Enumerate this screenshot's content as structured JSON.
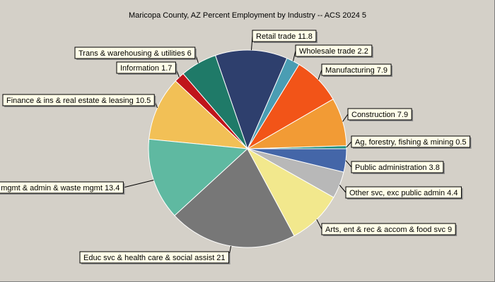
{
  "chart_data": {
    "type": "pie",
    "title": "Maricopa County, AZ Percent Employment by Industry -- ACS 2024 5",
    "legend": "none",
    "slices": [
      {
        "label": "Ag, forestry, fishing & mining",
        "value": 0.5,
        "color": "#1f8f7f"
      },
      {
        "label": "Construction",
        "value": 7.9,
        "color": "#f29b35"
      },
      {
        "label": "Manufacturing",
        "value": 7.9,
        "color": "#f25418"
      },
      {
        "label": "Wholesale trade",
        "value": 2.2,
        "color": "#4a9db3"
      },
      {
        "label": "Retail trade",
        "value": 11.8,
        "color": "#2e3f6d"
      },
      {
        "label": "Trans & warehousing & utilities",
        "value": 6,
        "color": "#1f7a68"
      },
      {
        "label": "Information",
        "value": 1.7,
        "color": "#c0141a"
      },
      {
        "label": "Finance & ins & real estate & leasing",
        "value": 10.5,
        "color": "#f2c056"
      },
      {
        "label": "Prof, sci, & mgmt & admin & waste mgmt",
        "value": 13.4,
        "color": "#5fb9a1"
      },
      {
        "label": "Educ svc & health care & social assist",
        "value": 21,
        "color": "#777777"
      },
      {
        "label": "Arts, ent & rec & accom & food svc",
        "value": 9,
        "color": "#f2e88d"
      },
      {
        "label": "Other svc, exc public admin",
        "value": 4.4,
        "color": "#b8b8b8"
      },
      {
        "label": "Public administration",
        "value": 3.8,
        "color": "#4466a8"
      }
    ]
  }
}
